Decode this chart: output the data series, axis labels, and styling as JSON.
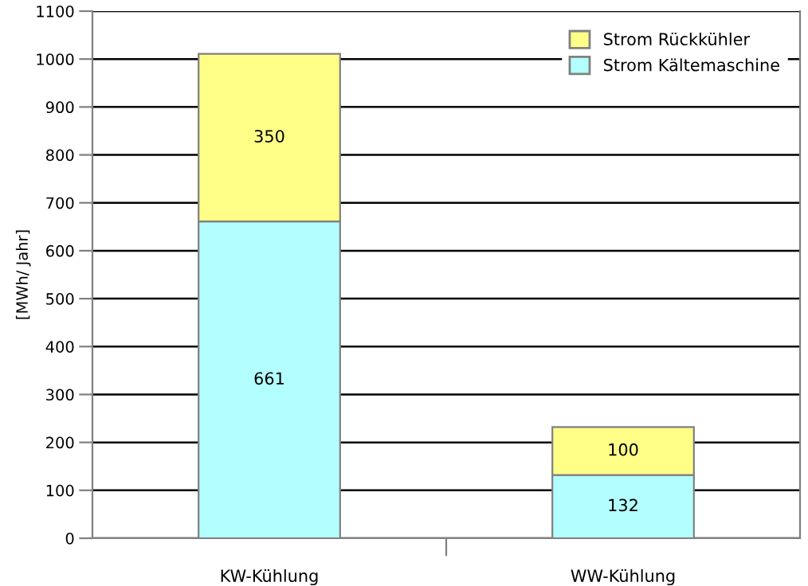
{
  "chart_data": {
    "type": "bar",
    "stacked": true,
    "categories": [
      "KW-Kühlung",
      "WW-Kühlung"
    ],
    "series": [
      {
        "name": "Strom Kältemaschine",
        "color": "#b3ffff",
        "values": [
          661,
          132
        ]
      },
      {
        "name": "Strom Rückkühler",
        "color": "#ffff88",
        "values": [
          350,
          100
        ]
      }
    ],
    "ylabel": "[MWh/ Jahr]",
    "ylim": [
      0,
      1100
    ],
    "yticks": [
      0,
      100,
      200,
      300,
      400,
      500,
      600,
      700,
      800,
      900,
      1000,
      1100
    ],
    "grid": "y",
    "legend": "top right",
    "data_labels": true
  }
}
